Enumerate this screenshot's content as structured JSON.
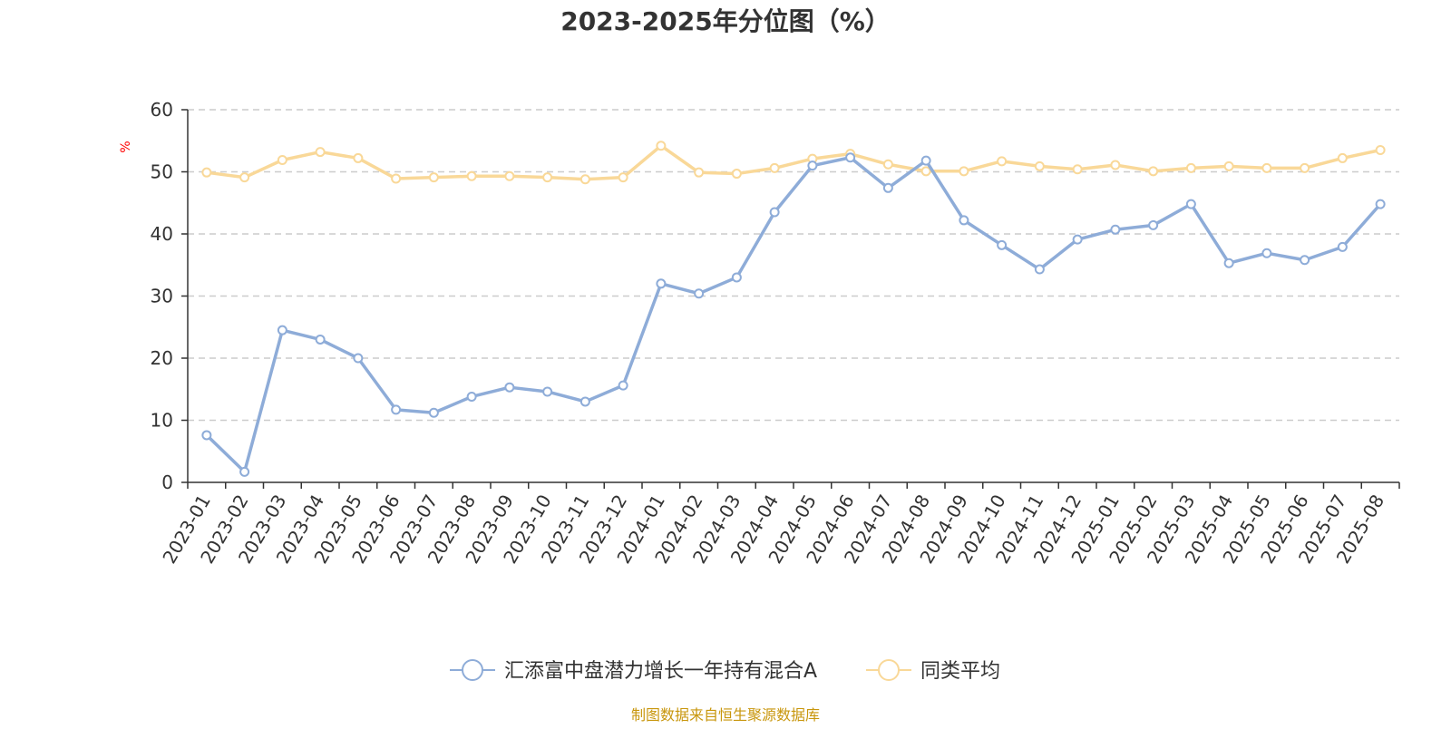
{
  "chart_data": {
    "type": "line",
    "title": "2023-2025年分位图（%）",
    "ylabel": "%",
    "xlabel": "",
    "ylim": [
      0,
      60
    ],
    "yticks": [
      0,
      10,
      20,
      30,
      40,
      50,
      60
    ],
    "grid": "horizontal dashed",
    "legend_position": "bottom",
    "categories": [
      "2023-01",
      "2023-02",
      "2023-03",
      "2023-04",
      "2023-05",
      "2023-06",
      "2023-07",
      "2023-08",
      "2023-09",
      "2023-10",
      "2023-11",
      "2023-12",
      "2024-01",
      "2024-02",
      "2024-03",
      "2024-04",
      "2024-05",
      "2024-06",
      "2024-07",
      "2024-08",
      "2024-09",
      "2024-10",
      "2024-11",
      "2024-12",
      "2025-01",
      "2025-02",
      "2025-03",
      "2025-04",
      "2025-05",
      "2025-06",
      "2025-07",
      "2025-08"
    ],
    "series": [
      {
        "name": "汇添富中盘潜力增长一年持有混合A",
        "color": "#8eacd8",
        "values": [
          7.6,
          1.7,
          24.5,
          23.0,
          20.0,
          11.7,
          11.2,
          13.8,
          15.3,
          14.6,
          13.0,
          15.6,
          32.0,
          30.4,
          33.0,
          43.5,
          51.0,
          52.3,
          47.4,
          51.8,
          42.2,
          38.2,
          34.3,
          39.1,
          40.7,
          41.4,
          44.8,
          35.3,
          36.9,
          35.8,
          37.9,
          44.8
        ]
      },
      {
        "name": "同类平均",
        "color": "#f9d898",
        "values": [
          49.9,
          49.1,
          51.9,
          53.2,
          52.2,
          48.9,
          49.1,
          49.3,
          49.3,
          49.1,
          48.8,
          49.1,
          54.2,
          49.9,
          49.7,
          50.6,
          52.1,
          52.9,
          51.2,
          50.1,
          50.1,
          51.7,
          50.9,
          50.4,
          51.1,
          50.1,
          50.6,
          50.9,
          50.6,
          50.6,
          52.2,
          53.5
        ]
      }
    ]
  },
  "colors": {
    "axis": "#333333",
    "grid": "#cccccc",
    "unit_label": "#ff0000",
    "source": "#c8960c"
  },
  "source_text": "制图数据来自恒生聚源数据库"
}
